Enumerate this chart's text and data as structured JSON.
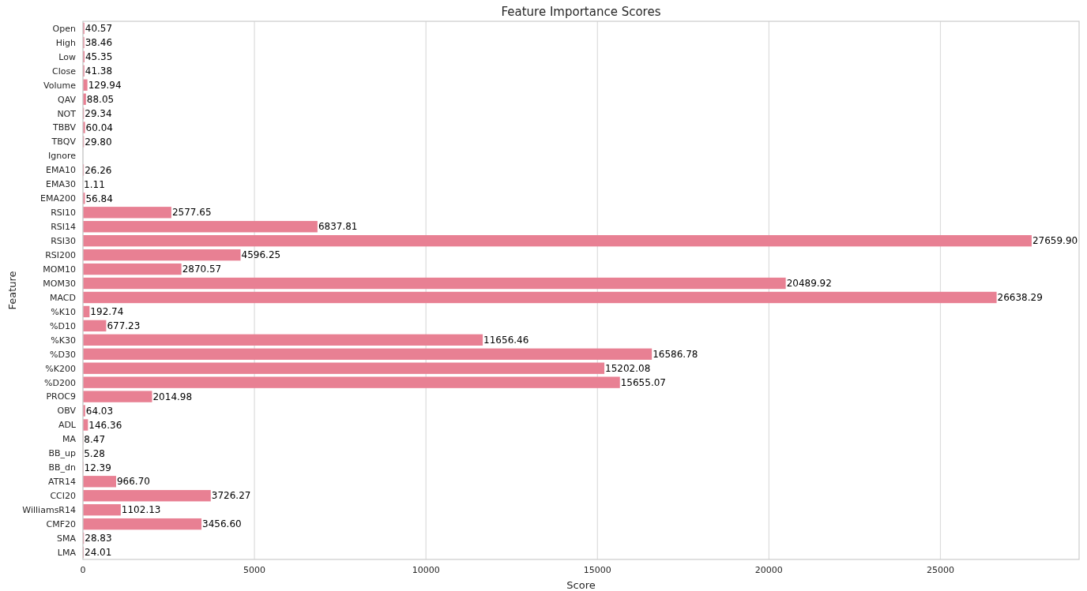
{
  "chart_data": {
    "type": "bar",
    "orientation": "horizontal",
    "title": "Feature Importance Scores",
    "xlabel": "Score",
    "ylabel": "Feature",
    "categories": [
      "Open",
      "High",
      "Low",
      "Close",
      "Volume",
      "QAV",
      "NOT",
      "TBBV",
      "TBQV",
      "Ignore",
      "EMA10",
      "EMA30",
      "EMA200",
      "RSI10",
      "RSI14",
      "RSI30",
      "RSI200",
      "MOM10",
      "MOM30",
      "MACD",
      "%K10",
      "%D10",
      "%K30",
      "%D30",
      "%K200",
      "%D200",
      "PROC9",
      "OBV",
      "ADL",
      "MA",
      "BB_up",
      "BB_dn",
      "ATR14",
      "CCI20",
      "WilliamsR14",
      "CMF20",
      "SMA",
      "LMA"
    ],
    "values": [
      40.57,
      38.46,
      45.35,
      41.38,
      129.94,
      88.05,
      29.34,
      60.04,
      29.8,
      null,
      26.26,
      1.11,
      56.84,
      2577.65,
      6837.81,
      27659.9,
      4596.25,
      2870.57,
      20489.92,
      26638.29,
      192.74,
      677.23,
      11656.46,
      16586.78,
      15202.08,
      15655.07,
      2014.98,
      64.03,
      146.36,
      8.47,
      5.28,
      12.39,
      966.7,
      3726.27,
      1102.13,
      3456.6,
      28.83,
      24.01
    ],
    "value_labels": [
      "40.57",
      "38.46",
      "45.35",
      "41.38",
      "129.94",
      "88.05",
      "29.34",
      "60.04",
      "29.80",
      null,
      "26.26",
      "1.11",
      "56.84",
      "2577.65",
      "6837.81",
      "27659.90",
      "4596.25",
      "2870.57",
      "20489.92",
      "26638.29",
      "192.74",
      "677.23",
      "11656.46",
      "16586.78",
      "15202.08",
      "15655.07",
      "2014.98",
      "64.03",
      "146.36",
      "8.47",
      "5.28",
      "12.39",
      "966.70",
      "3726.27",
      "1102.13",
      "3456.60",
      "28.83",
      "24.01"
    ],
    "color": "#e88093",
    "xlim": [
      0,
      29043
    ],
    "xticks": [
      0,
      5000,
      10000,
      15000,
      20000,
      25000
    ],
    "grid": "x"
  }
}
